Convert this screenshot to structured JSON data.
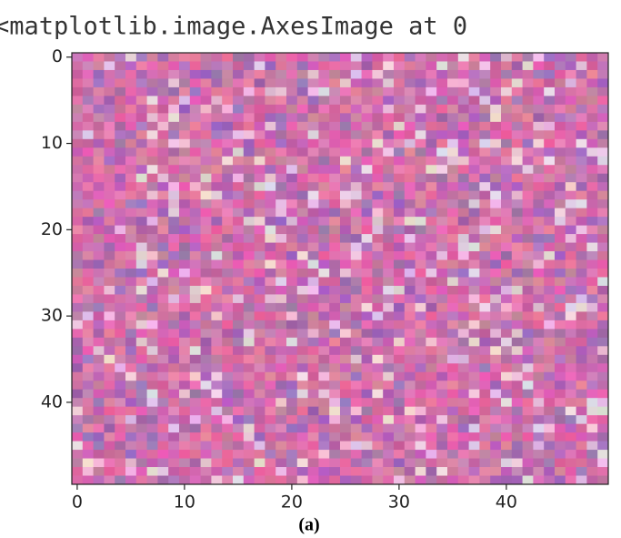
{
  "chart_data": {
    "type": "image",
    "title": "<matplotlib.image.AxesImage at 0",
    "xlim": [
      -0.5,
      49.5
    ],
    "ylim": [
      49.5,
      -0.5
    ],
    "xticks": [
      0,
      10,
      20,
      30,
      40
    ],
    "yticks": [
      0,
      10,
      20,
      30,
      40
    ],
    "caption": "(a)"
  }
}
